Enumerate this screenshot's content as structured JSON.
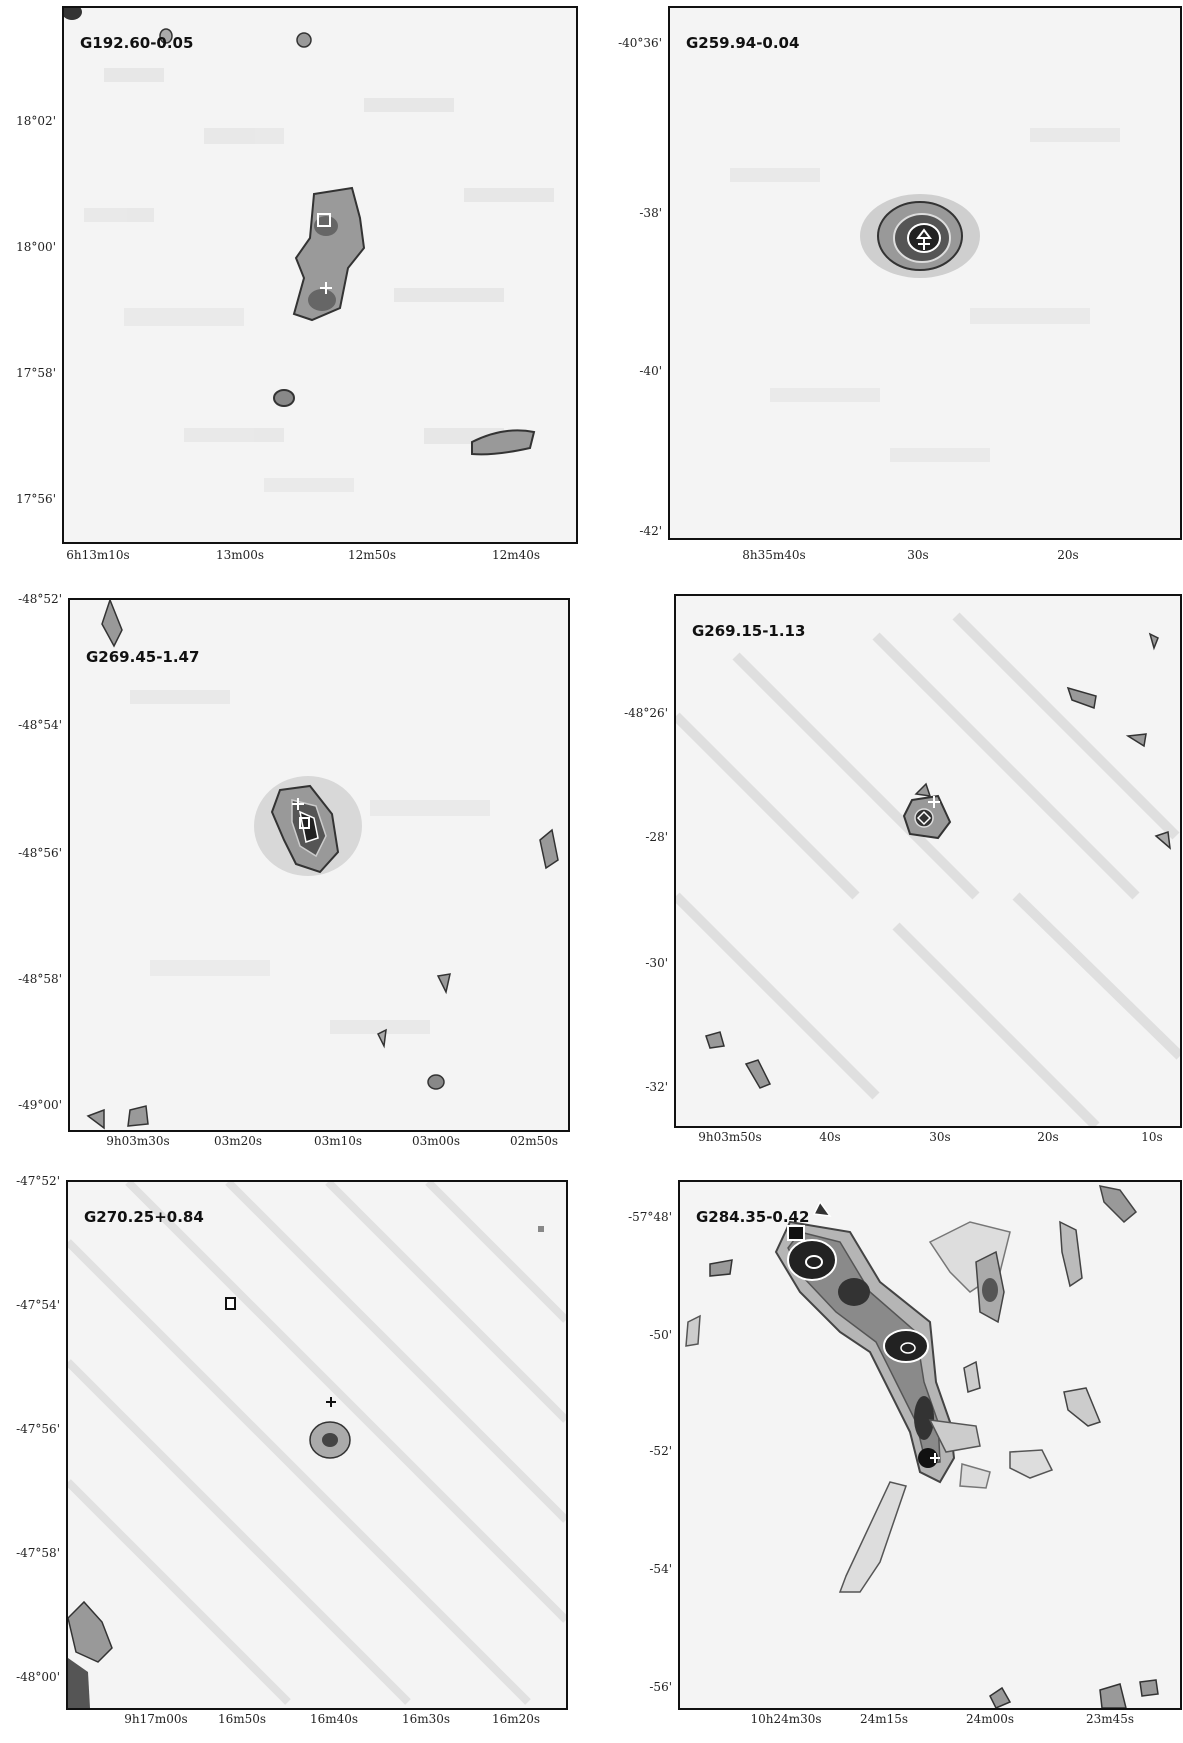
{
  "panels": [
    {
      "title": "G192.60-0.05",
      "yticks": [
        "18°02'",
        "18°00'",
        "17°58'",
        "17°56'"
      ],
      "xticks": [
        "6h13m10s",
        "13m00s",
        "12m50s",
        "12m40s"
      ]
    },
    {
      "title": "G259.94-0.04",
      "yticks": [
        "-40°36'",
        "-38'",
        "-40'",
        "-42'"
      ],
      "xticks": [
        "8h35m40s",
        "30s",
        "20s"
      ]
    },
    {
      "title": "G269.45-1.47",
      "yticks": [
        "-48°52'",
        "-48°54'",
        "-48°56'",
        "-48°58'",
        "-49°00'"
      ],
      "xticks": [
        "9h03m30s",
        "03m20s",
        "03m10s",
        "03m00s",
        "02m50s"
      ]
    },
    {
      "title": "G269.15-1.13",
      "yticks": [
        "-48°26'",
        "-28'",
        "-30'",
        "-32'"
      ],
      "xticks": [
        "9h03m50s",
        "40s",
        "30s",
        "20s",
        "10s"
      ]
    },
    {
      "title": "G270.25+0.84",
      "yticks": [
        "-47°52'",
        "-47°54'",
        "-47°56'",
        "-47°58'",
        "-48°00'"
      ],
      "xticks": [
        "9h17m00s",
        "16m50s",
        "16m40s",
        "16m30s",
        "16m20s"
      ]
    },
    {
      "title": "G284.35-0.42",
      "yticks": [
        "-57°48'",
        "-50'",
        "-52'",
        "-54'",
        "-56'"
      ],
      "xticks": [
        "10h24m30s",
        "24m15s",
        "24m00s",
        "23m45s"
      ]
    }
  ]
}
